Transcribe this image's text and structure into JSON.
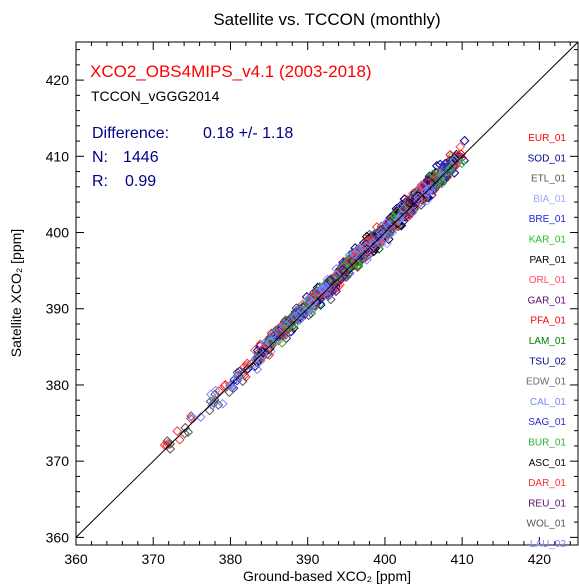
{
  "chart_data": {
    "type": "scatter",
    "title": "Satellite vs. TCCON (monthly)",
    "xlabel": "Ground-based XCO₂ [ppm]",
    "ylabel": "Satellite XCO₂ [ppm]",
    "xlim": [
      360,
      425
    ],
    "ylim": [
      359,
      425
    ],
    "xticks": [
      360,
      370,
      380,
      390,
      400,
      410,
      420
    ],
    "yticks": [
      360,
      370,
      380,
      390,
      400,
      410,
      420
    ],
    "grid": false,
    "reference_line": "1:1",
    "annotations": {
      "product": "XCO2_OBS4MIPS_v4.1 (2003-2018)",
      "tccon_version": "TCCON_vGGG2014",
      "difference_label": "Difference:",
      "difference_value": "0.18 +/-  1.18",
      "n_label": "N:",
      "n_value": "1446",
      "r_label": "R:",
      "r_value": "0.99"
    },
    "legend_placement": "right",
    "colors": {
      "product": "#ff0000",
      "stats": "#00008b"
    },
    "series": [
      {
        "name": "EUR_01",
        "color": "#ff0000",
        "x_range": [
          385,
          410
        ]
      },
      {
        "name": "SOD_01",
        "color": "#00008b",
        "x_range": [
          383,
          411
        ]
      },
      {
        "name": "ETL_01",
        "color": "#555555",
        "x_range": [
          386,
          410
        ]
      },
      {
        "name": "BIA_01",
        "color": "#9ba7ff",
        "x_range": [
          385,
          410
        ]
      },
      {
        "name": "BRE_01",
        "color": "#1e24d6",
        "x_range": [
          380,
          410
        ]
      },
      {
        "name": "KAR_01",
        "color": "#22c022",
        "x_range": [
          382,
          410
        ]
      },
      {
        "name": "PAR_01",
        "color": "#000000",
        "x_range": [
          383,
          409
        ]
      },
      {
        "name": "ORL_01",
        "color": "#ff4a5a",
        "x_range": [
          379,
          410
        ]
      },
      {
        "name": "GAR_01",
        "color": "#5a0a6e",
        "x_range": [
          383,
          409
        ]
      },
      {
        "name": "PFA_01",
        "color": "#ff0000",
        "x_range": [
          389,
          410
        ]
      },
      {
        "name": "LAM_01",
        "color": "#007a00",
        "x_range": [
          391,
          409
        ]
      },
      {
        "name": "TSU_02",
        "color": "#00008b",
        "x_range": [
          382,
          409
        ]
      },
      {
        "name": "EDW_01",
        "color": "#6a6a6a",
        "x_range": [
          390,
          409
        ]
      },
      {
        "name": "CAL_01",
        "color": "#7b84ff",
        "x_range": [
          384,
          409
        ]
      },
      {
        "name": "SAG_01",
        "color": "#2c2cc8",
        "x_range": [
          385,
          409
        ]
      },
      {
        "name": "BUR_01",
        "color": "#30b030",
        "x_range": [
          385,
          409
        ]
      },
      {
        "name": "ASC_01",
        "color": "#000000",
        "x_range": [
          397,
          406
        ]
      },
      {
        "name": "DAR_01",
        "color": "#ff3030",
        "x_range": [
          371,
          407
        ]
      },
      {
        "name": "REU_01",
        "color": "#5a0a6e",
        "x_range": [
          392,
          406
        ]
      },
      {
        "name": "WOL_01",
        "color": "#555555",
        "x_range": [
          370,
          404
        ]
      },
      {
        "name": "LAU_02",
        "color": "#7b84ff",
        "x_range": [
          373,
          406
        ]
      }
    ]
  }
}
